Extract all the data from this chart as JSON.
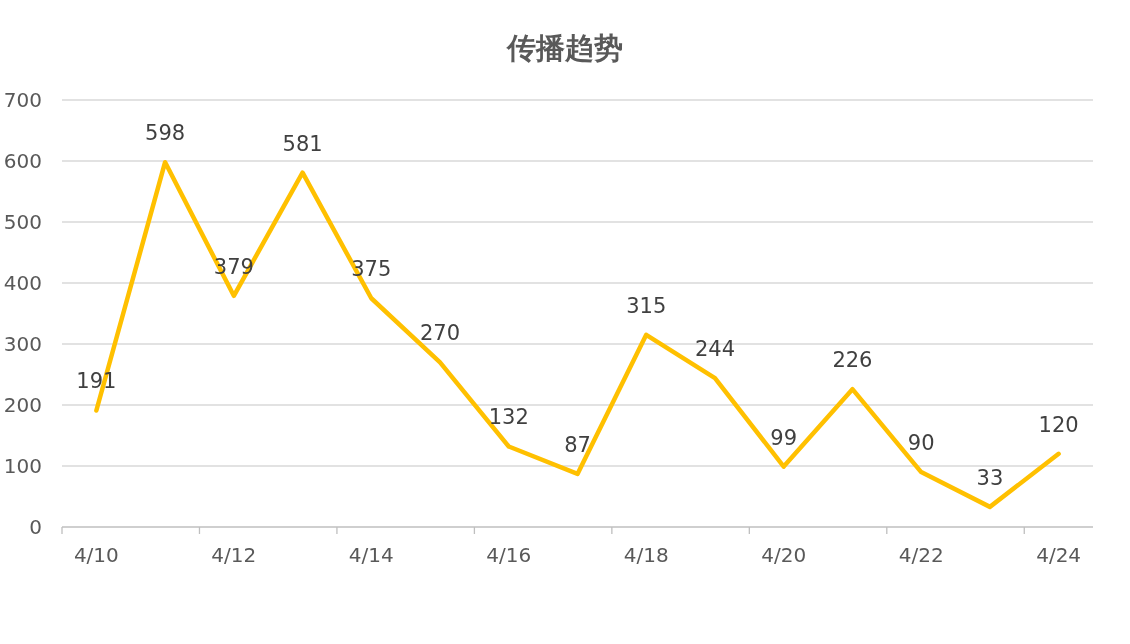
{
  "chart_data": {
    "type": "line",
    "title": "传播趋势",
    "categories": [
      "4/10",
      null,
      "4/12",
      null,
      "4/14",
      null,
      "4/16",
      null,
      "4/18",
      null,
      "4/20",
      null,
      "4/22",
      null,
      "4/24"
    ],
    "values": [
      191,
      598,
      379,
      581,
      375,
      270,
      132,
      87,
      315,
      244,
      99,
      226,
      90,
      33,
      120
    ],
    "color": "#ffc000",
    "ylim": [
      0,
      700
    ],
    "yticks": [
      0,
      100,
      200,
      300,
      400,
      500,
      600,
      700
    ],
    "grid": "y",
    "data_labels": true
  }
}
